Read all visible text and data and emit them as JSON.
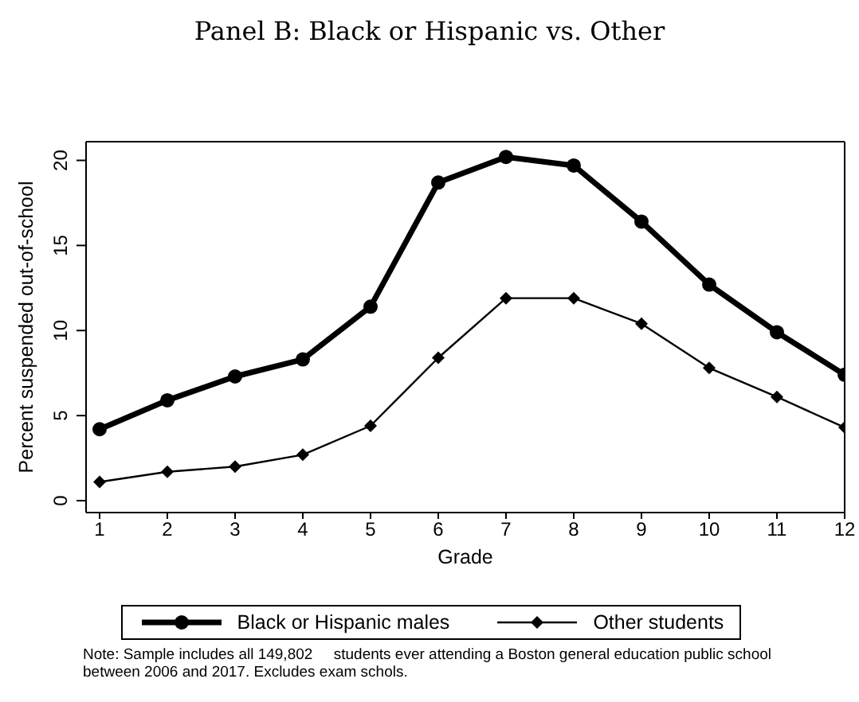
{
  "chart_data": {
    "type": "line",
    "title": "Panel B: Black or Hispanic vs. Other",
    "xlabel": "Grade",
    "ylabel": "Percent suspended out-of-school",
    "x": [
      1,
      2,
      3,
      4,
      5,
      6,
      7,
      8,
      9,
      10,
      11,
      12
    ],
    "series": [
      {
        "name": "Black or Hispanic males",
        "color": "#000000",
        "marker": "circle",
        "values": [
          4.2,
          5.9,
          7.3,
          8.3,
          11.4,
          18.7,
          20.2,
          19.7,
          16.4,
          12.7,
          9.9,
          7.4
        ]
      },
      {
        "name": "Other students",
        "color": "#000000",
        "marker": "diamond",
        "values": [
          1.1,
          1.7,
          2.0,
          2.7,
          4.4,
          8.4,
          11.9,
          11.9,
          10.4,
          7.8,
          6.1,
          4.3
        ]
      }
    ],
    "xlim": [
      0.8,
      12
    ],
    "xticks": [
      1,
      2,
      3,
      4,
      5,
      6,
      7,
      8,
      9,
      10,
      11,
      12
    ],
    "ylim": [
      -0.7,
      21.1
    ],
    "yticks": [
      0,
      5,
      10,
      15,
      20
    ],
    "grid": false,
    "legend": "bottom",
    "line_style": "solid",
    "annotations": [
      "Note: Sample includes all 149,802     students ever attending a Boston general education public school between 2006 and 2017. Excludes exam schols."
    ]
  }
}
